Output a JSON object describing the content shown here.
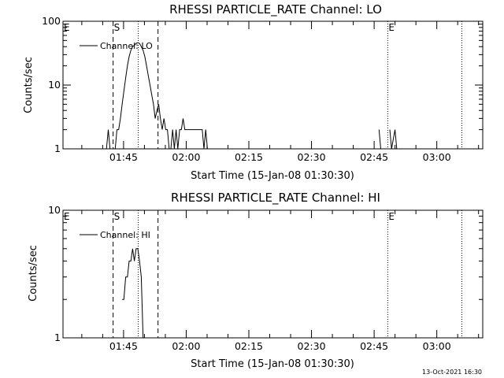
{
  "chart_data": [
    {
      "type": "line",
      "title": "RHESSI PARTICLE_RATE Channel: LO",
      "xlabel": "Start Time (15-Jan-08 01:30:30)",
      "ylabel": "Counts/sec",
      "yscale": "log",
      "ylim": [
        1,
        100
      ],
      "y_ticks": [
        "1",
        "10",
        "100"
      ],
      "xlim": [
        "01:30:30",
        "03:11:00"
      ],
      "x_ticks": [
        "01:45",
        "02:00",
        "02:15",
        "02:30",
        "02:45",
        "03:00"
      ],
      "legend": "top-left",
      "series": [
        {
          "name": "Channel: LO",
          "x": [
            "01:40:55",
            "01:41:20",
            "01:41:45",
            "01:42:10",
            "01:42:35",
            "01:43:00",
            "01:43:25",
            "01:43:50",
            "01:44:15",
            "01:44:40",
            "01:45:05",
            "01:45:30",
            "01:45:55",
            "01:46:20",
            "01:46:45",
            "01:47:10",
            "01:47:35",
            "01:48:00",
            "01:48:25",
            "01:48:50",
            "01:49:15",
            "01:49:40",
            "01:50:05",
            "01:50:30",
            "01:50:55",
            "01:51:20",
            "01:51:45",
            "01:52:10",
            "01:52:35",
            "01:53:00",
            "01:53:25",
            "01:53:50",
            "01:54:15",
            "01:54:40",
            "01:55:05",
            "01:55:30",
            "01:55:55",
            "01:56:20",
            "01:56:45",
            "01:57:10",
            "01:57:35",
            "01:58:00",
            "01:58:25",
            "01:58:50",
            "01:59:15",
            "01:59:40",
            "02:00:05",
            "02:00:30",
            "02:00:55",
            "02:01:20",
            "02:01:45",
            "02:02:10",
            "02:02:35",
            "02:03:00",
            "02:03:25",
            "02:03:50",
            "02:04:15",
            "02:04:40",
            "02:05:05",
            "02:46:10",
            "02:46:35",
            "02:48:45",
            "02:49:10",
            "02:50:00",
            "02:50:25"
          ],
          "values": [
            1,
            2,
            1,
            1,
            1,
            1,
            2,
            2,
            3,
            5,
            8,
            13,
            20,
            28,
            35,
            40,
            42,
            45,
            46,
            45,
            40,
            35,
            28,
            20,
            14,
            10,
            7,
            5,
            3,
            4,
            5,
            3,
            2,
            3,
            2,
            2,
            1,
            1,
            2,
            1,
            2,
            1,
            2,
            2,
            3,
            2,
            2,
            2,
            2,
            2,
            2,
            2,
            2,
            2,
            2,
            2,
            1,
            2,
            1,
            2,
            1,
            2,
            1,
            2,
            1
          ]
        }
      ],
      "markers": [
        "E",
        "S",
        "E"
      ]
    },
    {
      "type": "line",
      "title": "RHESSI PARTICLE_RATE Channel: HI",
      "xlabel": "Start Time (15-Jan-08 01:30:30)",
      "ylabel": "Counts/sec",
      "yscale": "log",
      "ylim": [
        1,
        10
      ],
      "y_ticks": [
        "1",
        "10"
      ],
      "xlim": [
        "01:30:30",
        "03:11:00"
      ],
      "x_ticks": [
        "01:45",
        "02:00",
        "02:15",
        "02:30",
        "02:45",
        "03:00"
      ],
      "legend": "top-left",
      "series": [
        {
          "name": "Channel: HI",
          "x": [
            "01:44:40",
            "01:45:05",
            "01:45:30",
            "01:45:55",
            "01:46:20",
            "01:46:45",
            "01:47:10",
            "01:47:35",
            "01:48:00",
            "01:48:25",
            "01:48:50",
            "01:49:15",
            "01:49:40"
          ],
          "values": [
            2,
            2,
            3,
            3,
            4,
            4,
            5,
            4,
            5,
            5,
            4,
            3,
            1
          ]
        }
      ],
      "markers": [
        "E",
        "S",
        "E"
      ]
    }
  ],
  "timestamp": "13-Oct-2021 16:30"
}
